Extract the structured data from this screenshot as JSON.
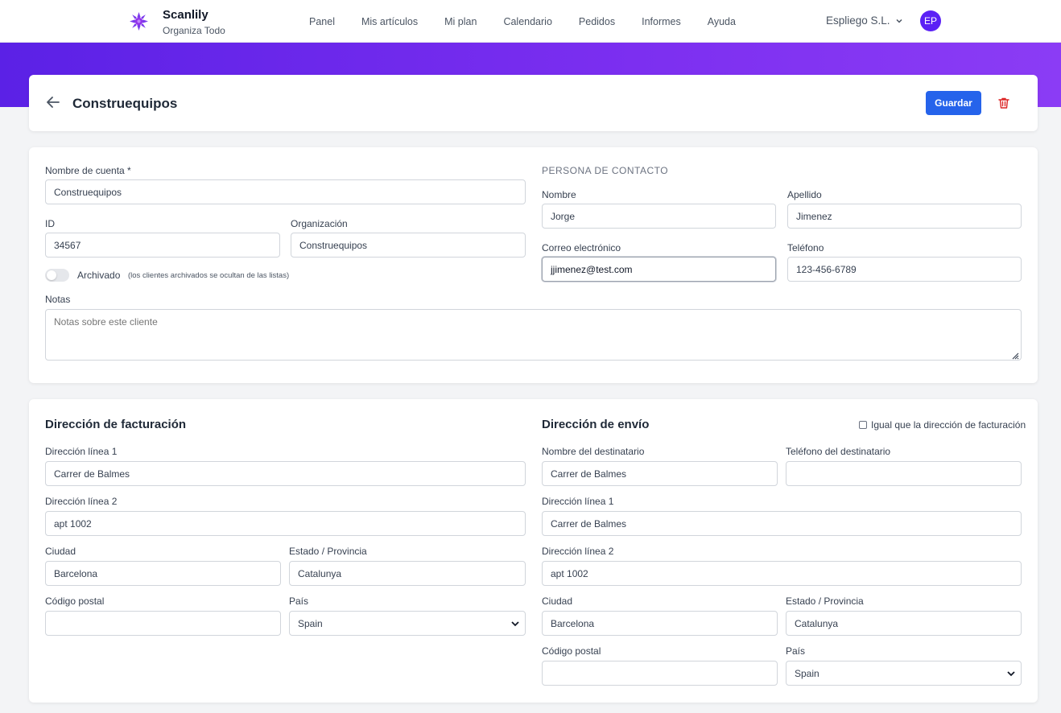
{
  "brand": {
    "name": "Scanlily",
    "tagline": "Organiza Todo",
    "logo_icon": "flower-logo-icon",
    "accent_color": "#7c3aed"
  },
  "nav": {
    "links": [
      "Panel",
      "Mis artículos",
      "Mi plan",
      "Calendario",
      "Pedidos",
      "Informes",
      "Ayuda"
    ],
    "org_name": "Espliego S.L.",
    "avatar_initials": "EP"
  },
  "colors": {
    "banner_start": "#5b21e6",
    "banner_end": "#8b3cf5",
    "primary_button": "#2563eb",
    "delete_icon": "#dc2626"
  },
  "header": {
    "title": "Construequipos",
    "save_label": "Guardar"
  },
  "account": {
    "account_name_label": "Nombre de cuenta *",
    "account_name_value": "Construequipos",
    "id_label": "ID",
    "id_value": "34567",
    "organization_label": "Organización",
    "organization_value": "Construequipos",
    "archived_label": "Archivado",
    "archived_hint": "(los clientes archivados se ocultan de las listas)",
    "archived_on": false,
    "notes_label": "Notas",
    "notes_placeholder": "Notas sobre este cliente",
    "notes_value": ""
  },
  "contact": {
    "caption": "PERSONA DE CONTACTO",
    "first_name_label": "Nombre",
    "first_name_value": "Jorge",
    "last_name_label": "Apellido",
    "last_name_value": "Jimenez",
    "email_label": "Correo electrónico",
    "email_value": "jjimenez@test.com",
    "phone_label": "Teléfono",
    "phone_value": "123-456-6789"
  },
  "billing": {
    "title": "Dirección de facturación",
    "line1_label": "Dirección línea 1",
    "line1_value": "Carrer de Balmes",
    "line2_label": "Dirección línea 2",
    "line2_value": "apt 1002",
    "city_label": "Ciudad",
    "city_value": "Barcelona",
    "state_label": "Estado / Provincia",
    "state_value": "Catalunya",
    "zip_label": "Código postal",
    "zip_value": "",
    "country_label": "País",
    "country_value": "Spain"
  },
  "shipping": {
    "title": "Dirección de envío",
    "same_as_billing_label": "Igual que la dirección de facturación",
    "same_as_billing_checked": false,
    "recipient_name_label": "Nombre del destinatario",
    "recipient_name_value": "Carrer de Balmes",
    "recipient_phone_label": "Teléfono del destinatario",
    "recipient_phone_value": "",
    "line1_label": "Dirección línea 1",
    "line1_value": "Carrer de Balmes",
    "line2_label": "Dirección línea 2",
    "line2_value": "apt 1002",
    "city_label": "Ciudad",
    "city_value": "Barcelona",
    "state_label": "Estado / Provincia",
    "state_value": "Catalunya",
    "zip_label": "Código postal",
    "zip_value": "",
    "country_label": "País",
    "country_value": "Spain"
  }
}
